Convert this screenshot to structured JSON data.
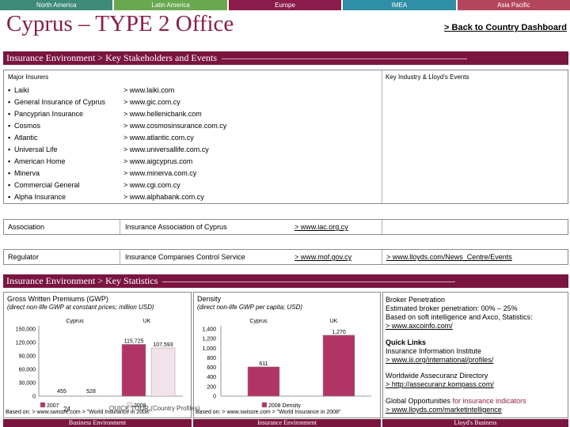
{
  "tabs": [
    "North America",
    "Latin America",
    "Europe",
    "IMEA",
    "Asia Pacific"
  ],
  "page_title": "Cyprus – TYPE 2 Office",
  "back_link": "> Back to Country Dashboard",
  "section1": "Insurance Environment > Key Stakeholders and Events",
  "insurers": {
    "heading": "Major Insurers",
    "events_heading": "Key Industry & Lloyd's Events",
    "bullet": "▪",
    "items": [
      {
        "name": "Laiki",
        "url": "> www.laiki.com"
      },
      {
        "name": "General Insurance of Cyprus",
        "url": "> www.gic.com.cy"
      },
      {
        "name": "Pancyprian Insurance",
        "url": "> www.hellenicbank.com"
      },
      {
        "name": "Cosmos",
        "url": "> www.cosmosinsurance.com.cy"
      },
      {
        "name": "Atlantic",
        "url": "> www.atlantic.com.cy"
      },
      {
        "name": "Universal Life",
        "url": "> www.universallife.com.cy"
      },
      {
        "name": "American Home",
        "url": "> www.aigcyprus.com"
      },
      {
        "name": "Minerva",
        "url": "> www.minerva.com.cy"
      },
      {
        "name": "Commercial General",
        "url": "> www.cgi.com.cy"
      },
      {
        "name": "Alpha Insurance",
        "url": "> www.alphabank.com.cy"
      }
    ]
  },
  "association": {
    "label": "Association",
    "name": "Insurance Association of Cyprus",
    "url": "> www.iac.org.cy"
  },
  "regulator": {
    "label": "Regulator",
    "name": "Insurance Companies Control Service",
    "url": "> www.mof.gov.cy",
    "events_url": "> www.lloyds.com/News_Centre/Events"
  },
  "section2": "Insurance Environment > Key Statistics",
  "gwp": {
    "title": "Gross Written Premiums (GWP)",
    "subtitle": "(direct non-life GWP at constant prices; million USD)",
    "source": "Based on: > www.swissre.com > \"World Insurance in 2008\""
  },
  "density": {
    "title": "Density",
    "subtitle": "(direct non-life GWP per capita; USD)",
    "source": "Based on: > www.swissre.com > \"World Insurance in 2008\""
  },
  "chart_data": [
    {
      "type": "bar",
      "title": "Gross Written Premiums (GWP)",
      "categories": [
        "Cyprus",
        "UK"
      ],
      "series": [
        {
          "name": "2007",
          "values": [
            455,
            115725
          ]
        },
        {
          "name": "2008",
          "values": [
            528,
            107593
          ]
        }
      ],
      "value_labels": [
        [
          "455",
          "115,725"
        ],
        [
          "528",
          "107,593"
        ]
      ],
      "yticks": [
        "0",
        "30,000",
        "60,000",
        "90,000",
        "120,000",
        "150,000"
      ],
      "ylim": [
        0,
        150000
      ]
    },
    {
      "type": "bar",
      "title": "Density",
      "categories": [
        "Cyprus",
        "UK"
      ],
      "series": [
        {
          "name": "2008 Density",
          "values": [
            611,
            1270
          ]
        }
      ],
      "value_labels": [
        [
          "611",
          "1,270"
        ]
      ],
      "yticks": [
        "0",
        "200",
        "400",
        "600",
        "800",
        "1,000",
        "1,200",
        "1,400"
      ],
      "ylim": [
        0,
        1400
      ]
    }
  ],
  "broker": {
    "title": "Broker Penetration",
    "line1": "Estimated broker penetration: 00% – 25%",
    "line2": "Based on soft intelligence and Axco, Statistics:",
    "link1": "> www.axcoinfo.com/"
  },
  "quick_links": {
    "title": "Quick Links",
    "iii_name": "Insurance Information Institute",
    "iii_link": "> www.iii.org/international/profiles/",
    "wad_name": "Worldwide Assecuranz Directory",
    "wad_link": "> http://assecuranz.kompass.com/",
    "go_prefix": "Global Opportunities",
    "go_suffix": " for insurance indicators",
    "go_link": "> www.lloyds.com/marketintelligence"
  },
  "footer": {
    "business": "Business Environment",
    "insurance": "Insurance Environment",
    "lloyds": "Lloyd's Business"
  },
  "page_number": "24",
  "quick_tour": "QUICK TOUR (Country Profiles)",
  "colors": {
    "accent": "#8a1d4b",
    "bar_2007": "#b03565",
    "bar_2008": "#f2e3ea"
  }
}
